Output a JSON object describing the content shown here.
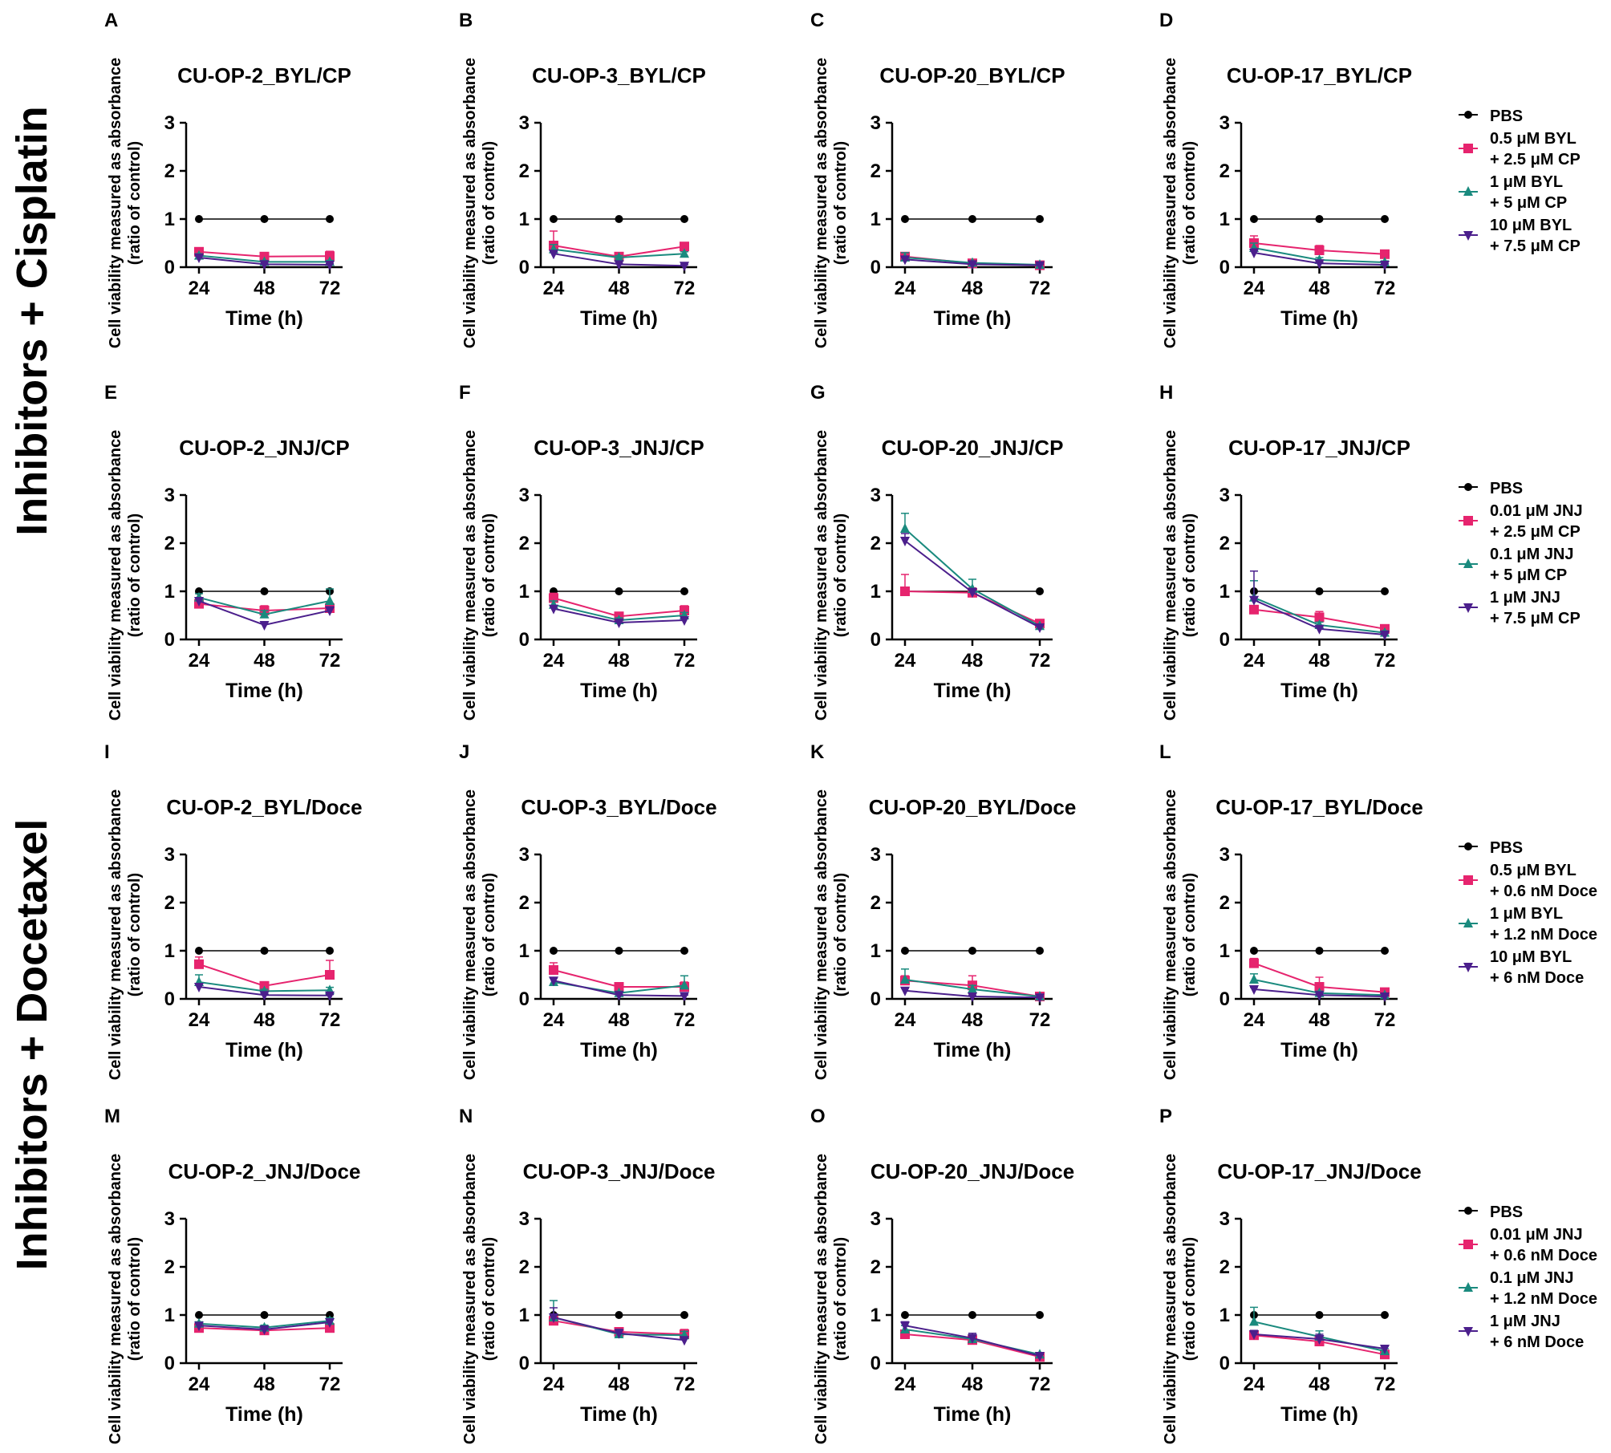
{
  "row_groups": [
    {
      "label": "Inhibitors + Cisplatin"
    },
    {
      "label": "Inhibitors + Docetaxel"
    }
  ],
  "common": {
    "ylabel_line1": "Cell viability measured as absorbance",
    "ylabel_line2": "(ratio of control)",
    "xlabel": "Time (h)",
    "x_ticks": [
      "24",
      "48",
      "72"
    ],
    "y_ticks": [
      "0",
      "1",
      "2",
      "3"
    ]
  },
  "colors": {
    "PBS": "#000000",
    "low": "#e6246e",
    "mid": "#1a8a7e",
    "high": "#4b1f8c"
  },
  "legends": [
    {
      "row": 0,
      "entries": [
        {
          "key": "PBS",
          "lines": [
            "PBS"
          ]
        },
        {
          "key": "low",
          "lines": [
            "0.5 μM BYL",
            "+ 2.5 μM CP"
          ]
        },
        {
          "key": "mid",
          "lines": [
            "1 μM BYL",
            "+ 5 μM CP"
          ]
        },
        {
          "key": "high",
          "lines": [
            "10 μM BYL",
            "+ 7.5 μM CP"
          ]
        }
      ]
    },
    {
      "row": 1,
      "entries": [
        {
          "key": "PBS",
          "lines": [
            "PBS"
          ]
        },
        {
          "key": "low",
          "lines": [
            "0.01 μM JNJ",
            "+ 2.5 μM CP"
          ]
        },
        {
          "key": "mid",
          "lines": [
            "0.1 μM JNJ",
            "+ 5 μM CP"
          ]
        },
        {
          "key": "high",
          "lines": [
            "1 μM JNJ",
            "+ 7.5 μM CP"
          ]
        }
      ]
    },
    {
      "row": 2,
      "entries": [
        {
          "key": "PBS",
          "lines": [
            "PBS"
          ]
        },
        {
          "key": "low",
          "lines": [
            "0.5 μM BYL",
            "+ 0.6 nM Doce"
          ]
        },
        {
          "key": "mid",
          "lines": [
            "1 μM BYL",
            "+ 1.2 nM Doce"
          ]
        },
        {
          "key": "high",
          "lines": [
            "10 μM BYL",
            "+ 6 nM Doce"
          ]
        }
      ]
    },
    {
      "row": 3,
      "entries": [
        {
          "key": "PBS",
          "lines": [
            "PBS"
          ]
        },
        {
          "key": "low",
          "lines": [
            "0.01 μM JNJ",
            "+ 0.6 nM Doce"
          ]
        },
        {
          "key": "mid",
          "lines": [
            "0.1 μM JNJ",
            "+ 1.2 nM Doce"
          ]
        },
        {
          "key": "high",
          "lines": [
            "1 μM JNJ",
            "+ 6 nM Doce"
          ]
        }
      ]
    }
  ],
  "chart_data": [
    {
      "panel": "A",
      "title": "CU-OP-2_BYL/CP",
      "type": "line",
      "x": [
        24,
        48,
        72
      ],
      "ylim": [
        0,
        3
      ],
      "series": [
        {
          "key": "PBS",
          "values": [
            1,
            1,
            1
          ],
          "err": [
            0,
            0,
            0
          ]
        },
        {
          "key": "low",
          "values": [
            0.32,
            0.22,
            0.23
          ],
          "err": [
            0.05,
            0.05,
            0.1
          ]
        },
        {
          "key": "mid",
          "values": [
            0.24,
            0.11,
            0.11
          ],
          "err": [
            0.04,
            0.03,
            0.03
          ]
        },
        {
          "key": "high",
          "values": [
            0.2,
            0.06,
            0.05
          ],
          "err": [
            0.03,
            0.02,
            0.02
          ]
        }
      ]
    },
    {
      "panel": "B",
      "title": "CU-OP-3_BYL/CP",
      "type": "line",
      "x": [
        24,
        48,
        72
      ],
      "ylim": [
        0,
        3
      ],
      "series": [
        {
          "key": "PBS",
          "values": [
            1,
            1,
            1
          ],
          "err": [
            0,
            0,
            0
          ]
        },
        {
          "key": "low",
          "values": [
            0.45,
            0.22,
            0.43
          ],
          "err": [
            0.3,
            0.04,
            0.06
          ]
        },
        {
          "key": "mid",
          "values": [
            0.37,
            0.2,
            0.28
          ],
          "err": [
            0.1,
            0.04,
            0.04
          ]
        },
        {
          "key": "high",
          "values": [
            0.28,
            0.06,
            0.03
          ],
          "err": [
            0.05,
            0.02,
            0.02
          ]
        }
      ]
    },
    {
      "panel": "C",
      "title": "CU-OP-20_BYL/CP",
      "type": "line",
      "x": [
        24,
        48,
        72
      ],
      "ylim": [
        0,
        3
      ],
      "series": [
        {
          "key": "PBS",
          "values": [
            1,
            1,
            1
          ],
          "err": [
            0,
            0,
            0
          ]
        },
        {
          "key": "low",
          "values": [
            0.22,
            0.08,
            0.04
          ],
          "err": [
            0.08,
            0.03,
            0.02
          ]
        },
        {
          "key": "mid",
          "values": [
            0.2,
            0.09,
            0.05
          ],
          "err": [
            0.1,
            0.03,
            0.02
          ]
        },
        {
          "key": "high",
          "values": [
            0.16,
            0.06,
            0.04
          ],
          "err": [
            0.04,
            0.02,
            0.02
          ]
        }
      ]
    },
    {
      "panel": "D",
      "title": "CU-OP-17_BYL/CP",
      "type": "line",
      "x": [
        24,
        48,
        72
      ],
      "ylim": [
        0,
        3
      ],
      "series": [
        {
          "key": "PBS",
          "values": [
            1,
            1,
            1
          ],
          "err": [
            0,
            0,
            0
          ]
        },
        {
          "key": "low",
          "values": [
            0.5,
            0.35,
            0.27
          ],
          "err": [
            0.15,
            0.1,
            0.06
          ]
        },
        {
          "key": "mid",
          "values": [
            0.4,
            0.15,
            0.1
          ],
          "err": [
            0.1,
            0.05,
            0.03
          ]
        },
        {
          "key": "high",
          "values": [
            0.3,
            0.08,
            0.05
          ],
          "err": [
            0.08,
            0.03,
            0.02
          ]
        }
      ]
    },
    {
      "panel": "E",
      "title": "CU-OP-2_JNJ/CP",
      "type": "line",
      "x": [
        24,
        48,
        72
      ],
      "ylim": [
        0,
        3
      ],
      "series": [
        {
          "key": "PBS",
          "values": [
            1,
            1,
            1
          ],
          "err": [
            0,
            0,
            0
          ]
        },
        {
          "key": "low",
          "values": [
            0.74,
            0.6,
            0.65
          ],
          "err": [
            0.06,
            0.1,
            0.1
          ]
        },
        {
          "key": "mid",
          "values": [
            0.87,
            0.52,
            0.8
          ],
          "err": [
            0.08,
            0.08,
            0.25
          ]
        },
        {
          "key": "high",
          "values": [
            0.8,
            0.3,
            0.6
          ],
          "err": [
            0.06,
            0.05,
            0.08
          ]
        }
      ]
    },
    {
      "panel": "F",
      "title": "CU-OP-3_JNJ/CP",
      "type": "line",
      "x": [
        24,
        48,
        72
      ],
      "ylim": [
        0,
        3
      ],
      "series": [
        {
          "key": "PBS",
          "values": [
            1,
            1,
            1
          ],
          "err": [
            0,
            0,
            0
          ]
        },
        {
          "key": "low",
          "values": [
            0.86,
            0.48,
            0.6
          ],
          "err": [
            0.1,
            0.08,
            0.1
          ]
        },
        {
          "key": "mid",
          "values": [
            0.72,
            0.4,
            0.5
          ],
          "err": [
            0.08,
            0.05,
            0.06
          ]
        },
        {
          "key": "high",
          "values": [
            0.64,
            0.35,
            0.4
          ],
          "err": [
            0.06,
            0.04,
            0.05
          ]
        }
      ]
    },
    {
      "panel": "G",
      "title": "CU-OP-20_JNJ/CP",
      "type": "line",
      "x": [
        24,
        48,
        72
      ],
      "ylim": [
        0,
        3
      ],
      "series": [
        {
          "key": "PBS",
          "values": [
            1,
            1,
            1
          ],
          "err": [
            0,
            0,
            0
          ]
        },
        {
          "key": "low",
          "values": [
            1,
            0.97,
            0.33
          ],
          "err": [
            0.35,
            0.1,
            0.06
          ]
        },
        {
          "key": "mid",
          "values": [
            2.3,
            1.05,
            0.28
          ],
          "err": [
            0.32,
            0.2,
            0.04
          ]
        },
        {
          "key": "high",
          "values": [
            2.05,
            0.98,
            0.25
          ],
          "err": [
            0.15,
            0.08,
            0.03
          ]
        }
      ]
    },
    {
      "panel": "H",
      "title": "CU-OP-17_JNJ/CP",
      "type": "line",
      "x": [
        24,
        48,
        72
      ],
      "ylim": [
        0,
        3
      ],
      "series": [
        {
          "key": "PBS",
          "values": [
            1,
            1,
            1
          ],
          "err": [
            0,
            0,
            0
          ]
        },
        {
          "key": "low",
          "values": [
            0.62,
            0.46,
            0.22
          ],
          "err": [
            0.08,
            0.12,
            0.06
          ]
        },
        {
          "key": "mid",
          "values": [
            0.87,
            0.3,
            0.14
          ],
          "err": [
            0.35,
            0.06,
            0.04
          ]
        },
        {
          "key": "high",
          "values": [
            0.82,
            0.22,
            0.1
          ],
          "err": [
            0.6,
            0.05,
            0.03
          ]
        }
      ]
    },
    {
      "panel": "I",
      "title": "CU-OP-2_BYL/Doce",
      "type": "line",
      "x": [
        24,
        48,
        72
      ],
      "ylim": [
        0,
        3
      ],
      "series": [
        {
          "key": "PBS",
          "values": [
            1,
            1,
            1
          ],
          "err": [
            0,
            0,
            0
          ]
        },
        {
          "key": "low",
          "values": [
            0.72,
            0.27,
            0.5
          ],
          "err": [
            0.15,
            0.04,
            0.3
          ]
        },
        {
          "key": "mid",
          "values": [
            0.35,
            0.16,
            0.18
          ],
          "err": [
            0.15,
            0.04,
            0.06
          ]
        },
        {
          "key": "high",
          "values": [
            0.25,
            0.08,
            0.07
          ],
          "err": [
            0.05,
            0.02,
            0.02
          ]
        }
      ]
    },
    {
      "panel": "J",
      "title": "CU-OP-3_BYL/Doce",
      "type": "line",
      "x": [
        24,
        48,
        72
      ],
      "ylim": [
        0,
        3
      ],
      "series": [
        {
          "key": "PBS",
          "values": [
            1,
            1,
            1
          ],
          "err": [
            0,
            0,
            0
          ]
        },
        {
          "key": "low",
          "values": [
            0.6,
            0.25,
            0.25
          ],
          "err": [
            0.15,
            0.06,
            0.1
          ]
        },
        {
          "key": "mid",
          "values": [
            0.35,
            0.12,
            0.28
          ],
          "err": [
            0.08,
            0.04,
            0.2
          ]
        },
        {
          "key": "high",
          "values": [
            0.38,
            0.08,
            0.06
          ],
          "err": [
            0.06,
            0.02,
            0.02
          ]
        }
      ]
    },
    {
      "panel": "K",
      "title": "CU-OP-20_BYL/Doce",
      "type": "line",
      "x": [
        24,
        48,
        72
      ],
      "ylim": [
        0,
        3
      ],
      "series": [
        {
          "key": "PBS",
          "values": [
            1,
            1,
            1
          ],
          "err": [
            0,
            0,
            0
          ]
        },
        {
          "key": "low",
          "values": [
            0.38,
            0.28,
            0.05
          ],
          "err": [
            0.1,
            0.2,
            0.02
          ]
        },
        {
          "key": "mid",
          "values": [
            0.4,
            0.2,
            0.05
          ],
          "err": [
            0.22,
            0.08,
            0.02
          ]
        },
        {
          "key": "high",
          "values": [
            0.17,
            0.05,
            0.03
          ],
          "err": [
            0.05,
            0.02,
            0.01
          ]
        }
      ]
    },
    {
      "panel": "L",
      "title": "CU-OP-17_BYL/Doce",
      "type": "line",
      "x": [
        24,
        48,
        72
      ],
      "ylim": [
        0,
        3
      ],
      "series": [
        {
          "key": "PBS",
          "values": [
            1,
            1,
            1
          ],
          "err": [
            0,
            0,
            0
          ]
        },
        {
          "key": "low",
          "values": [
            0.74,
            0.25,
            0.14
          ],
          "err": [
            0.1,
            0.2,
            0.04
          ]
        },
        {
          "key": "mid",
          "values": [
            0.4,
            0.12,
            0.08
          ],
          "err": [
            0.12,
            0.04,
            0.02
          ]
        },
        {
          "key": "high",
          "values": [
            0.2,
            0.08,
            0.05
          ],
          "err": [
            0.04,
            0.02,
            0.02
          ]
        }
      ]
    },
    {
      "panel": "M",
      "title": "CU-OP-2_JNJ/Doce",
      "type": "line",
      "x": [
        24,
        48,
        72
      ],
      "ylim": [
        0,
        3
      ],
      "series": [
        {
          "key": "PBS",
          "values": [
            1,
            1,
            1
          ],
          "err": [
            0,
            0,
            0
          ]
        },
        {
          "key": "low",
          "values": [
            0.73,
            0.68,
            0.73
          ],
          "err": [
            0.04,
            0.04,
            0.04
          ]
        },
        {
          "key": "mid",
          "values": [
            0.82,
            0.74,
            0.88
          ],
          "err": [
            0.04,
            0.05,
            0.06
          ]
        },
        {
          "key": "high",
          "values": [
            0.78,
            0.7,
            0.85
          ],
          "err": [
            0.04,
            0.04,
            0.05
          ]
        }
      ]
    },
    {
      "panel": "N",
      "title": "CU-OP-3_JNJ/Doce",
      "type": "line",
      "x": [
        24,
        48,
        72
      ],
      "ylim": [
        0,
        3
      ],
      "series": [
        {
          "key": "PBS",
          "values": [
            1,
            1,
            1
          ],
          "err": [
            0,
            0,
            0
          ]
        },
        {
          "key": "low",
          "values": [
            0.88,
            0.65,
            0.6
          ],
          "err": [
            0.08,
            0.08,
            0.1
          ]
        },
        {
          "key": "mid",
          "values": [
            0.95,
            0.6,
            0.58
          ],
          "err": [
            0.35,
            0.1,
            0.08
          ]
        },
        {
          "key": "high",
          "values": [
            0.95,
            0.62,
            0.48
          ],
          "err": [
            0.2,
            0.08,
            0.06
          ]
        }
      ]
    },
    {
      "panel": "O",
      "title": "CU-OP-20_JNJ/Doce",
      "type": "line",
      "x": [
        24,
        48,
        72
      ],
      "ylim": [
        0,
        3
      ],
      "series": [
        {
          "key": "PBS",
          "values": [
            1,
            1,
            1
          ],
          "err": [
            0,
            0,
            0
          ]
        },
        {
          "key": "low",
          "values": [
            0.6,
            0.48,
            0.13
          ],
          "err": [
            0.06,
            0.08,
            0.03
          ]
        },
        {
          "key": "mid",
          "values": [
            0.7,
            0.5,
            0.18
          ],
          "err": [
            0.08,
            0.08,
            0.03
          ]
        },
        {
          "key": "high",
          "values": [
            0.78,
            0.52,
            0.15
          ],
          "err": [
            0.08,
            0.1,
            0.03
          ]
        }
      ]
    },
    {
      "panel": "P",
      "title": "CU-OP-17_JNJ/Doce",
      "type": "line",
      "x": [
        24,
        48,
        72
      ],
      "ylim": [
        0,
        3
      ],
      "series": [
        {
          "key": "PBS",
          "values": [
            1,
            1,
            1
          ],
          "err": [
            0,
            0,
            0
          ]
        },
        {
          "key": "low",
          "values": [
            0.58,
            0.45,
            0.18
          ],
          "err": [
            0.06,
            0.08,
            0.04
          ]
        },
        {
          "key": "mid",
          "values": [
            0.86,
            0.55,
            0.25
          ],
          "err": [
            0.3,
            0.12,
            0.05
          ]
        },
        {
          "key": "high",
          "values": [
            0.6,
            0.5,
            0.3
          ],
          "err": [
            0.08,
            0.1,
            0.05
          ]
        }
      ]
    }
  ]
}
